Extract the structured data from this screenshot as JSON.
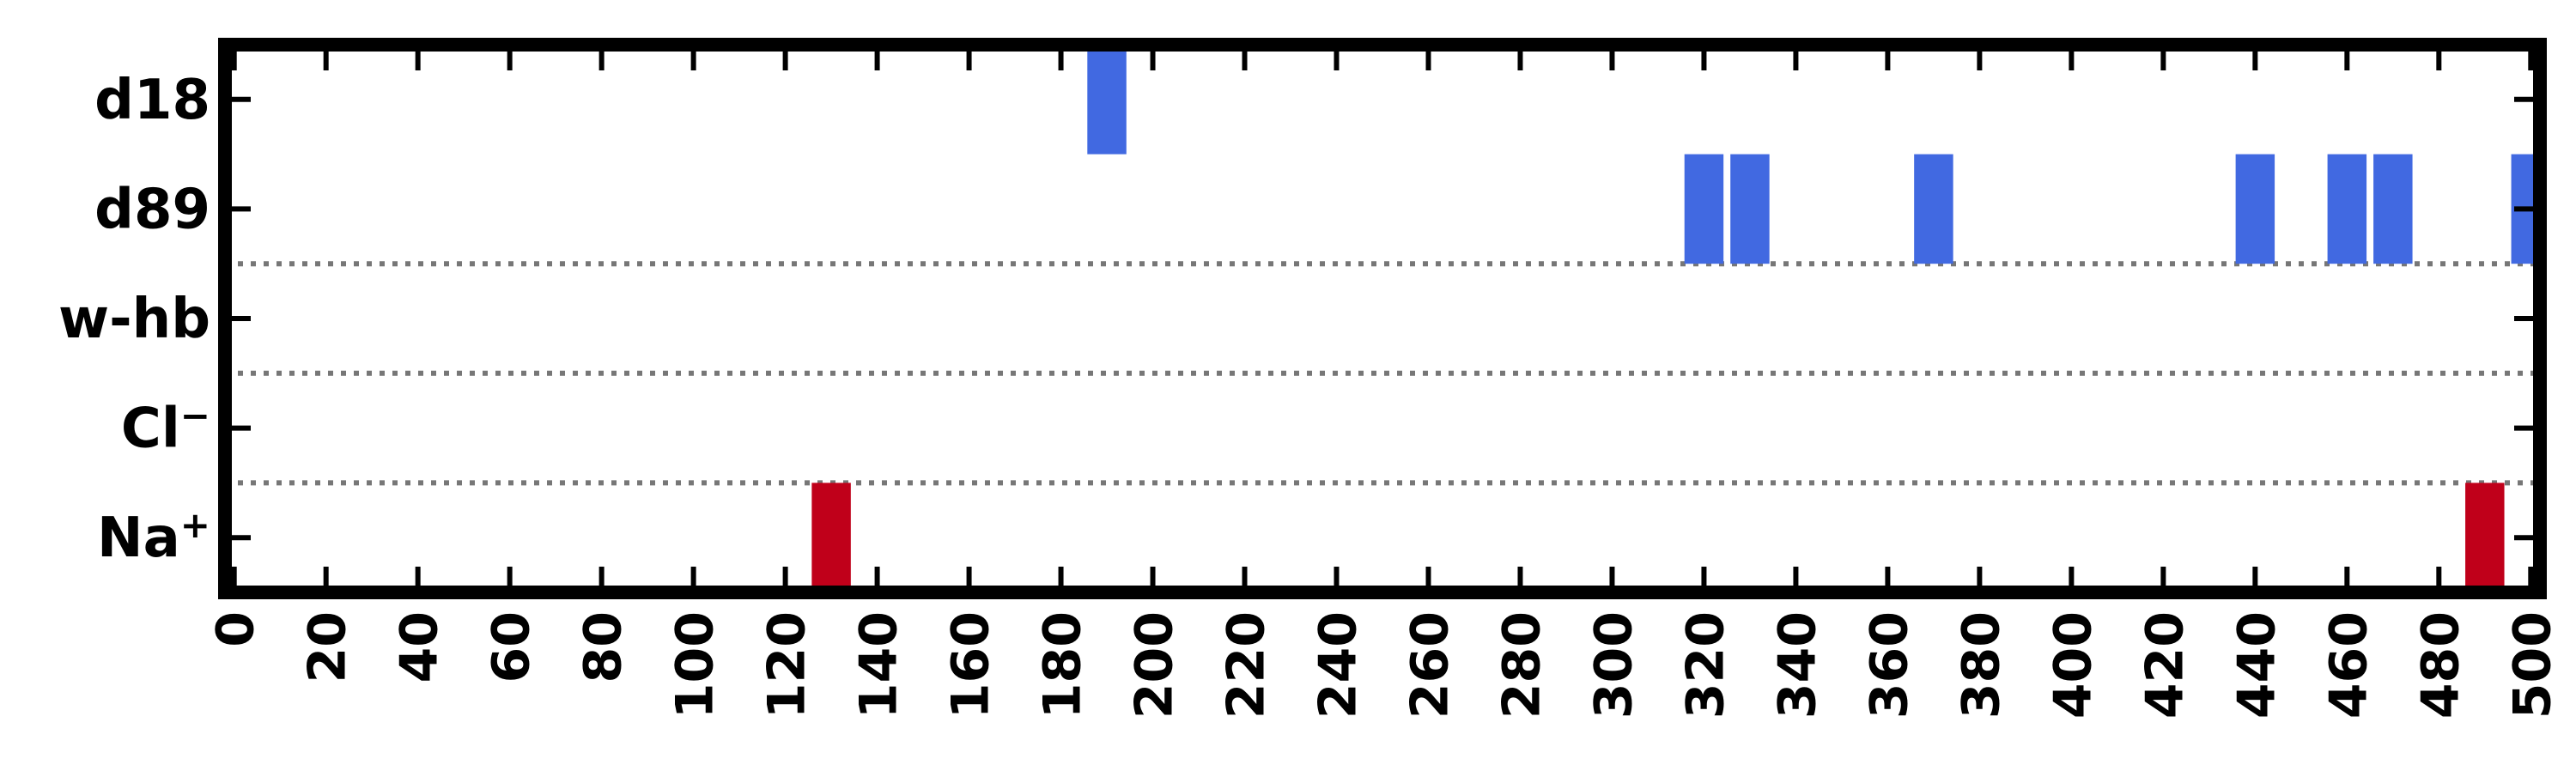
{
  "chart_data": {
    "type": "event-raster",
    "xlim": [
      -2,
      502
    ],
    "x_ticks": [
      0,
      20,
      40,
      60,
      80,
      100,
      120,
      140,
      160,
      180,
      200,
      220,
      240,
      260,
      280,
      300,
      320,
      340,
      360,
      380,
      400,
      420,
      440,
      460,
      480,
      500
    ],
    "rows": [
      {
        "label": "d18",
        "label_sup": "",
        "color": "#4169E1",
        "events": [
          190
        ]
      },
      {
        "label": "d89",
        "label_sup": "",
        "color": "#4169E1",
        "events": [
          320,
          330,
          370,
          440,
          460,
          470,
          500
        ]
      },
      {
        "label": "w-hb",
        "label_sup": "",
        "color": "#4169E1",
        "events": []
      },
      {
        "label": "Cl",
        "label_sup": "−",
        "color": "#C0001A",
        "events": []
      },
      {
        "label": "Na",
        "label_sup": "+",
        "color": "#C0001A",
        "events": [
          130,
          490
        ]
      }
    ],
    "event_width": 8.5,
    "separator_after_rows": [
      "d89",
      "w-hb",
      "Cl"
    ],
    "separator_style": "dotted",
    "separator_color": "#777777",
    "grid": false,
    "legend": "none"
  }
}
